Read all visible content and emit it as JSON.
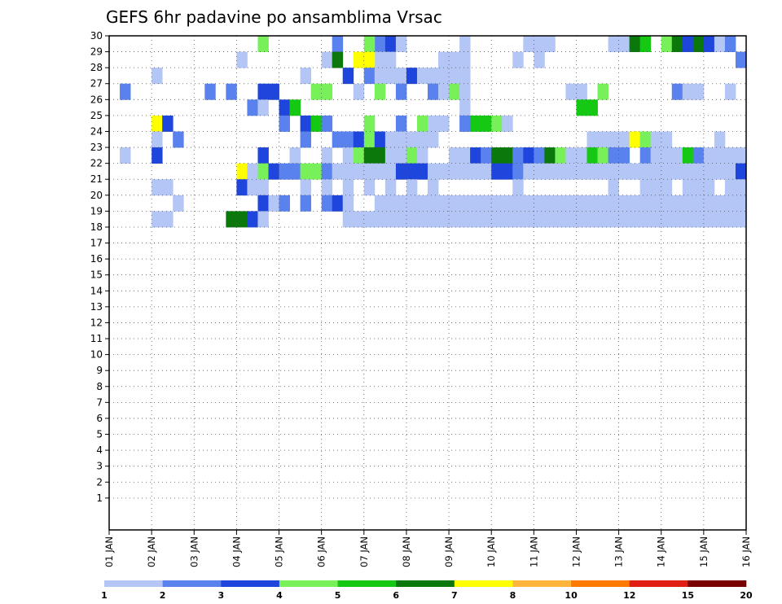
{
  "chart_data": {
    "type": "heatmap",
    "title": "GEFS 6hr padavine po ansamblima Vrsac",
    "x": {
      "start": "01 JAN",
      "end": "16 JAN",
      "tick_labels": [
        "01 JAN",
        "02 JAN",
        "03 JAN",
        "04 JAN",
        "05 JAN",
        "06 JAN",
        "07 JAN",
        "08 JAN",
        "09 JAN",
        "10 JAN",
        "11 JAN",
        "12 JAN",
        "13 JAN",
        "14 JAN",
        "15 JAN",
        "16 JAN"
      ],
      "steps_per_day": 4,
      "step_hours": 6
    },
    "y": {
      "min": 1,
      "max": 30,
      "tick_labels": [
        "1",
        "2",
        "3",
        "4",
        "5",
        "6",
        "7",
        "8",
        "9",
        "10",
        "11",
        "12",
        "13",
        "14",
        "15",
        "16",
        "17",
        "18",
        "19",
        "20",
        "21",
        "22",
        "23",
        "24",
        "25",
        "26",
        "27",
        "28",
        "29",
        "30"
      ]
    },
    "grid": true,
    "colorbar": {
      "placement": "bottom",
      "tick_labels": [
        "1",
        "2",
        "3",
        "4",
        "5",
        "6",
        "7",
        "8",
        "10",
        "12",
        "15",
        "20"
      ],
      "colors": [
        "#b4c6f5",
        "#5a82ee",
        "#1e46dc",
        "#78f05a",
        "#14c814",
        "#0a780a",
        "#ffff00",
        "#ffb43c",
        "#ff7800",
        "#e01e14",
        "#780000"
      ]
    },
    "cells_note": "rows give [member, step, color_index]; step 0 = 01 JAN 00h, 6 h per step",
    "cells": [
      [
        0,
        25,
        1
      ],
      [
        0,
        26,
        2
      ],
      [
        0,
        27,
        0
      ],
      [
        0,
        33,
        0
      ],
      [
        0,
        39,
        0
      ],
      [
        0,
        40,
        0
      ],
      [
        0,
        41,
        0
      ],
      [
        0,
        47,
        0
      ],
      [
        0,
        48,
        0
      ],
      [
        0,
        49,
        5
      ],
      [
        0,
        50,
        4
      ],
      [
        0,
        52,
        3
      ],
      [
        0,
        53,
        5
      ],
      [
        0,
        54,
        2
      ],
      [
        0,
        55,
        5
      ],
      [
        0,
        56,
        2
      ],
      [
        0,
        57,
        0
      ],
      [
        0,
        58,
        1
      ],
      [
        0,
        14,
        3
      ],
      [
        0,
        21,
        1
      ],
      [
        0,
        24,
        3
      ],
      [
        1,
        12,
        0
      ],
      [
        1,
        20,
        0
      ],
      [
        1,
        25,
        0
      ],
      [
        1,
        26,
        0
      ],
      [
        1,
        31,
        0
      ],
      [
        1,
        32,
        0
      ],
      [
        1,
        33,
        0
      ],
      [
        1,
        38,
        0
      ],
      [
        1,
        40,
        0
      ],
      [
        1,
        59,
        1
      ],
      [
        1,
        21,
        5
      ],
      [
        1,
        23,
        6
      ],
      [
        1,
        24,
        6
      ],
      [
        2,
        4,
        0
      ],
      [
        2,
        18,
        0
      ],
      [
        2,
        22,
        2
      ],
      [
        2,
        24,
        1
      ],
      [
        2,
        25,
        0
      ],
      [
        2,
        26,
        0
      ],
      [
        2,
        27,
        0
      ],
      [
        2,
        28,
        2
      ],
      [
        2,
        29,
        0
      ],
      [
        2,
        30,
        0
      ],
      [
        2,
        31,
        0
      ],
      [
        2,
        32,
        0
      ],
      [
        2,
        33,
        0
      ],
      [
        3,
        1,
        1
      ],
      [
        3,
        9,
        1
      ],
      [
        3,
        11,
        1
      ],
      [
        3,
        14,
        2
      ],
      [
        3,
        15,
        2
      ],
      [
        3,
        19,
        3
      ],
      [
        3,
        20,
        3
      ],
      [
        3,
        23,
        0
      ],
      [
        3,
        25,
        3
      ],
      [
        3,
        27,
        1
      ],
      [
        3,
        30,
        1
      ],
      [
        3,
        31,
        0
      ],
      [
        3,
        32,
        3
      ],
      [
        3,
        33,
        0
      ],
      [
        3,
        43,
        0
      ],
      [
        3,
        44,
        0
      ],
      [
        3,
        46,
        3
      ],
      [
        3,
        53,
        1
      ],
      [
        3,
        54,
        0
      ],
      [
        3,
        55,
        0
      ],
      [
        3,
        58,
        0
      ],
      [
        4,
        13,
        1
      ],
      [
        4,
        14,
        0
      ],
      [
        4,
        16,
        2
      ],
      [
        4,
        17,
        4
      ],
      [
        4,
        44,
        4
      ],
      [
        4,
        45,
        4
      ],
      [
        4,
        33,
        0
      ],
      [
        5,
        4,
        6
      ],
      [
        5,
        5,
        2
      ],
      [
        5,
        16,
        1
      ],
      [
        5,
        18,
        2
      ],
      [
        5,
        19,
        4
      ],
      [
        5,
        20,
        1
      ],
      [
        5,
        24,
        3
      ],
      [
        5,
        27,
        1
      ],
      [
        5,
        29,
        3
      ],
      [
        5,
        30,
        0
      ],
      [
        5,
        31,
        0
      ],
      [
        5,
        33,
        1
      ],
      [
        5,
        34,
        4
      ],
      [
        5,
        35,
        4
      ],
      [
        5,
        36,
        3
      ],
      [
        5,
        37,
        0
      ],
      [
        6,
        4,
        0
      ],
      [
        6,
        6,
        1
      ],
      [
        6,
        18,
        1
      ],
      [
        6,
        21,
        1
      ],
      [
        6,
        22,
        1
      ],
      [
        6,
        23,
        2
      ],
      [
        6,
        24,
        3
      ],
      [
        6,
        25,
        2
      ],
      [
        6,
        26,
        0
      ],
      [
        6,
        27,
        0
      ],
      [
        6,
        28,
        0
      ],
      [
        6,
        29,
        0
      ],
      [
        6,
        30,
        0
      ],
      [
        6,
        45,
        0
      ],
      [
        6,
        46,
        0
      ],
      [
        6,
        47,
        0
      ],
      [
        6,
        48,
        0
      ],
      [
        6,
        49,
        6
      ],
      [
        6,
        50,
        3
      ],
      [
        6,
        51,
        0
      ],
      [
        6,
        52,
        0
      ],
      [
        6,
        57,
        0
      ],
      [
        7,
        1,
        0
      ],
      [
        7,
        4,
        2
      ],
      [
        7,
        14,
        2
      ],
      [
        7,
        17,
        0
      ],
      [
        7,
        20,
        0
      ],
      [
        7,
        22,
        0
      ],
      [
        7,
        23,
        3
      ],
      [
        7,
        24,
        5
      ],
      [
        7,
        25,
        5
      ],
      [
        7,
        26,
        0
      ],
      [
        7,
        27,
        0
      ],
      [
        7,
        28,
        3
      ],
      [
        7,
        29,
        0
      ],
      [
        7,
        32,
        0
      ],
      [
        7,
        33,
        0
      ],
      [
        7,
        34,
        2
      ],
      [
        7,
        35,
        1
      ],
      [
        7,
        36,
        5
      ],
      [
        7,
        37,
        5
      ],
      [
        7,
        38,
        1
      ],
      [
        7,
        39,
        2
      ],
      [
        7,
        40,
        1
      ],
      [
        7,
        41,
        5
      ],
      [
        7,
        42,
        3
      ],
      [
        7,
        43,
        0
      ],
      [
        7,
        44,
        0
      ],
      [
        7,
        45,
        4
      ],
      [
        7,
        46,
        3
      ],
      [
        7,
        47,
        1
      ],
      [
        7,
        48,
        1
      ],
      [
        7,
        50,
        1
      ],
      [
        7,
        51,
        0
      ],
      [
        7,
        52,
        0
      ],
      [
        7,
        53,
        0
      ],
      [
        7,
        54,
        4
      ],
      [
        7,
        55,
        1
      ],
      [
        7,
        56,
        0
      ],
      [
        7,
        57,
        0
      ],
      [
        7,
        58,
        0
      ],
      [
        7,
        59,
        0
      ],
      [
        8,
        12,
        6
      ],
      [
        8,
        13,
        0
      ],
      [
        8,
        14,
        3
      ],
      [
        8,
        15,
        2
      ],
      [
        8,
        16,
        1
      ],
      [
        8,
        17,
        1
      ],
      [
        8,
        18,
        3
      ],
      [
        8,
        19,
        3
      ],
      [
        8,
        20,
        1
      ],
      [
        8,
        21,
        0
      ],
      [
        8,
        22,
        0
      ],
      [
        8,
        23,
        0
      ],
      [
        8,
        24,
        0
      ],
      [
        8,
        25,
        0
      ],
      [
        8,
        26,
        0
      ],
      [
        8,
        27,
        2
      ],
      [
        8,
        28,
        2
      ],
      [
        8,
        29,
        2
      ],
      [
        8,
        30,
        0
      ],
      [
        8,
        31,
        0
      ],
      [
        8,
        32,
        0
      ],
      [
        8,
        33,
        0
      ],
      [
        8,
        34,
        0
      ],
      [
        8,
        35,
        0
      ],
      [
        8,
        36,
        2
      ],
      [
        8,
        37,
        2
      ],
      [
        8,
        38,
        1
      ],
      [
        8,
        39,
        0
      ],
      [
        8,
        40,
        0
      ],
      [
        8,
        41,
        0
      ],
      [
        8,
        42,
        0
      ],
      [
        8,
        43,
        0
      ],
      [
        8,
        44,
        0
      ],
      [
        8,
        45,
        0
      ],
      [
        8,
        46,
        0
      ],
      [
        8,
        47,
        0
      ],
      [
        8,
        48,
        0
      ],
      [
        8,
        49,
        0
      ],
      [
        8,
        50,
        0
      ],
      [
        8,
        51,
        0
      ],
      [
        8,
        52,
        0
      ],
      [
        8,
        53,
        0
      ],
      [
        8,
        54,
        0
      ],
      [
        8,
        55,
        0
      ],
      [
        8,
        56,
        0
      ],
      [
        8,
        57,
        0
      ],
      [
        8,
        58,
        0
      ],
      [
        8,
        59,
        2
      ],
      [
        9,
        4,
        0
      ],
      [
        9,
        5,
        0
      ],
      [
        9,
        12,
        2
      ],
      [
        9,
        13,
        0
      ],
      [
        9,
        14,
        0
      ],
      [
        9,
        18,
        0
      ],
      [
        9,
        20,
        0
      ],
      [
        9,
        22,
        0
      ],
      [
        9,
        24,
        0
      ],
      [
        9,
        26,
        0
      ],
      [
        9,
        28,
        0
      ],
      [
        9,
        30,
        0
      ],
      [
        9,
        38,
        0
      ],
      [
        9,
        47,
        0
      ],
      [
        9,
        50,
        0
      ],
      [
        9,
        51,
        0
      ],
      [
        9,
        52,
        0
      ],
      [
        9,
        54,
        0
      ],
      [
        9,
        55,
        0
      ],
      [
        9,
        56,
        0
      ],
      [
        9,
        58,
        0
      ],
      [
        9,
        59,
        0
      ],
      [
        10,
        6,
        0
      ],
      [
        10,
        14,
        2
      ],
      [
        10,
        15,
        0
      ],
      [
        10,
        16,
        1
      ],
      [
        10,
        18,
        1
      ],
      [
        10,
        20,
        1
      ],
      [
        10,
        21,
        2
      ],
      [
        10,
        22,
        0
      ],
      [
        10,
        25,
        0
      ],
      [
        10,
        26,
        0
      ],
      [
        10,
        27,
        0
      ],
      [
        10,
        28,
        0
      ],
      [
        10,
        29,
        0
      ],
      [
        10,
        30,
        0
      ],
      [
        10,
        31,
        0
      ],
      [
        10,
        32,
        0
      ],
      [
        10,
        33,
        0
      ],
      [
        10,
        34,
        0
      ],
      [
        10,
        35,
        0
      ],
      [
        10,
        36,
        0
      ],
      [
        10,
        37,
        0
      ],
      [
        10,
        38,
        0
      ],
      [
        10,
        39,
        0
      ],
      [
        10,
        40,
        0
      ],
      [
        10,
        41,
        0
      ],
      [
        10,
        42,
        0
      ],
      [
        10,
        43,
        0
      ],
      [
        10,
        44,
        0
      ],
      [
        10,
        45,
        0
      ],
      [
        10,
        46,
        0
      ],
      [
        10,
        47,
        0
      ],
      [
        10,
        48,
        0
      ],
      [
        10,
        49,
        0
      ],
      [
        10,
        50,
        0
      ],
      [
        10,
        51,
        0
      ],
      [
        10,
        52,
        0
      ],
      [
        10,
        53,
        0
      ],
      [
        10,
        54,
        0
      ],
      [
        10,
        55,
        0
      ],
      [
        10,
        56,
        0
      ],
      [
        10,
        57,
        0
      ],
      [
        10,
        58,
        0
      ],
      [
        10,
        59,
        0
      ],
      [
        11,
        4,
        0
      ],
      [
        11,
        5,
        0
      ],
      [
        11,
        11,
        5
      ],
      [
        11,
        12,
        5
      ],
      [
        11,
        13,
        2
      ],
      [
        11,
        14,
        0
      ],
      [
        11,
        22,
        0
      ],
      [
        11,
        23,
        0
      ],
      [
        11,
        24,
        0
      ],
      [
        11,
        25,
        0
      ],
      [
        11,
        26,
        0
      ],
      [
        11,
        27,
        0
      ],
      [
        11,
        28,
        0
      ],
      [
        11,
        29,
        0
      ],
      [
        11,
        30,
        0
      ],
      [
        11,
        31,
        0
      ],
      [
        11,
        32,
        0
      ],
      [
        11,
        33,
        0
      ],
      [
        11,
        34,
        0
      ],
      [
        11,
        35,
        0
      ],
      [
        11,
        36,
        0
      ],
      [
        11,
        37,
        0
      ],
      [
        11,
        38,
        0
      ],
      [
        11,
        39,
        0
      ],
      [
        11,
        40,
        0
      ],
      [
        11,
        41,
        0
      ],
      [
        11,
        42,
        0
      ],
      [
        11,
        43,
        0
      ],
      [
        11,
        44,
        0
      ],
      [
        11,
        45,
        0
      ],
      [
        11,
        46,
        0
      ],
      [
        11,
        47,
        0
      ],
      [
        11,
        48,
        0
      ],
      [
        11,
        49,
        0
      ],
      [
        11,
        50,
        0
      ],
      [
        11,
        51,
        0
      ],
      [
        11,
        52,
        0
      ],
      [
        11,
        53,
        0
      ],
      [
        11,
        54,
        0
      ],
      [
        11,
        55,
        0
      ],
      [
        11,
        56,
        0
      ],
      [
        11,
        57,
        0
      ],
      [
        11,
        58,
        0
      ],
      [
        11,
        59,
        0
      ]
    ]
  }
}
